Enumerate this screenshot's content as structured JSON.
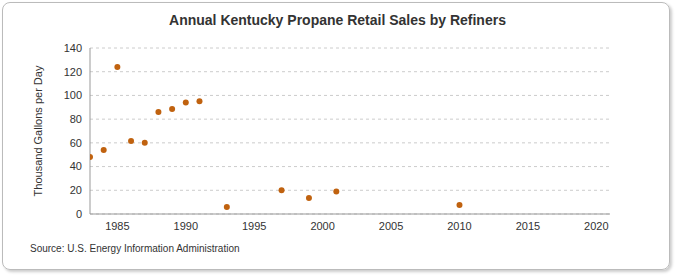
{
  "chart_data": {
    "type": "scatter",
    "title": "Annual Kentucky Propane Retail Sales by Refiners",
    "y_label": "Thousand Gallons per Day",
    "source": "Source: U.S. Energy Information Administration",
    "x": [
      1983,
      1984,
      1985,
      1986,
      1987,
      1988,
      1989,
      1990,
      1991,
      1993,
      1997,
      1999,
      2001,
      2010
    ],
    "values": [
      48,
      54,
      124,
      61.5,
      60,
      86,
      88.5,
      94,
      95,
      6,
      20,
      13.5,
      19,
      7.5
    ],
    "color": "#c0620f",
    "marker": "circle",
    "xlim": [
      1983,
      2021
    ],
    "xticks": [
      1985,
      1990,
      1995,
      2000,
      2005,
      2010,
      2015,
      2020
    ],
    "ylim": [
      0,
      140
    ],
    "yticks": [
      0,
      20,
      40,
      60,
      80,
      100,
      120,
      140
    ],
    "grid": true
  }
}
